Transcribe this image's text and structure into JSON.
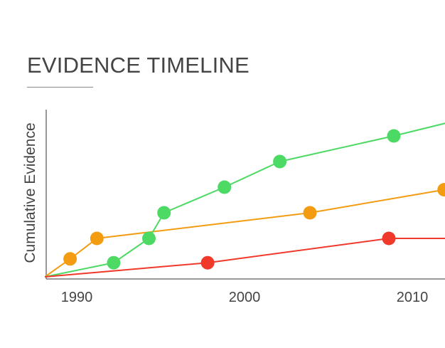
{
  "chart_data": {
    "type": "line",
    "title": "EVIDENCE TIMELINE",
    "xlabel": "",
    "ylabel": "Cumulative Evidence",
    "xlim": [
      1988,
      2012
    ],
    "ylim": [
      0,
      6.5
    ],
    "xticks": [
      "1990",
      "2000",
      "2010"
    ],
    "grid": false,
    "series": [
      {
        "color": "#f39c12",
        "line_points": [
          [
            1988.1,
            0
          ],
          [
            1989.6,
            0.7
          ],
          [
            1991.2,
            1.5
          ],
          [
            2003.9,
            2.5
          ],
          [
            2011.9,
            3.4
          ]
        ],
        "markers": [
          [
            1989.6,
            0.7
          ],
          [
            1991.2,
            1.5
          ],
          [
            2003.9,
            2.5
          ],
          [
            2011.9,
            3.4
          ]
        ]
      },
      {
        "color": "#4cd964",
        "line_points": [
          [
            1988.1,
            0
          ],
          [
            1992.2,
            0.55
          ],
          [
            1994.3,
            1.5
          ],
          [
            1995.2,
            2.5
          ],
          [
            1998.8,
            3.5
          ],
          [
            2002.1,
            4.5
          ],
          [
            2008.9,
            5.5
          ],
          [
            2012,
            6.0
          ]
        ],
        "markers": [
          [
            1992.2,
            0.55
          ],
          [
            1994.3,
            1.5
          ],
          [
            1995.2,
            2.5
          ],
          [
            1998.8,
            3.5
          ],
          [
            2002.1,
            4.5
          ],
          [
            2008.9,
            5.5
          ]
        ]
      },
      {
        "color": "#f0392b",
        "line_points": [
          [
            1988.1,
            0
          ],
          [
            1997.8,
            0.55
          ],
          [
            2008.6,
            1.5
          ],
          [
            2012,
            1.5
          ]
        ],
        "markers": [
          [
            1997.8,
            0.55
          ],
          [
            2008.6,
            1.5
          ]
        ]
      }
    ]
  }
}
